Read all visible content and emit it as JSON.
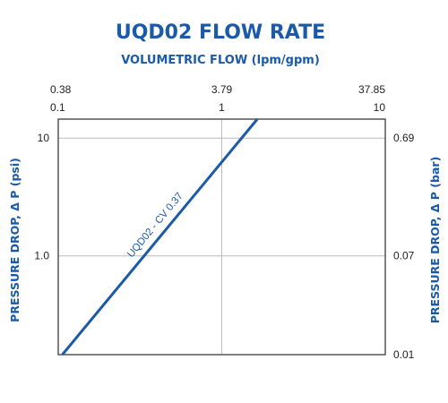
{
  "chart_data": {
    "type": "line",
    "title": "UQD02 FLOW RATE",
    "subtitle": "VOLUMETRIC FLOW (lpm/gpm)",
    "ylabel": "PRESSURE DROP, Δ P (psi)",
    "ylabel_right": "PRESSURE DROP, Δ P (bar)",
    "x_scale": "log",
    "y_scale": "log",
    "xlim": [
      0.1,
      10
    ],
    "ylim": [
      0.145,
      14.5
    ],
    "x_ticks_bottom": [
      {
        "value": 0.1,
        "label": "0.1"
      },
      {
        "value": 1,
        "label": "1"
      },
      {
        "value": 10,
        "label": "10"
      }
    ],
    "x_ticks_top": [
      {
        "value": 0.1,
        "label": "0.38"
      },
      {
        "value": 1,
        "label": "3.79"
      },
      {
        "value": 10,
        "label": "37.85"
      }
    ],
    "y_ticks_left": [
      {
        "value": 10,
        "label": "10"
      },
      {
        "value": 1.0,
        "label": "1.0"
      }
    ],
    "y_ticks_right": [
      {
        "value": 10,
        "label": "0.69"
      },
      {
        "value": 1.0,
        "label": "0.07"
      },
      {
        "value": 0.145,
        "label": "0.01"
      }
    ],
    "grid": true,
    "series": [
      {
        "name": "UQD02 - CV 0.37",
        "color": "#1a5aa8",
        "x": [
          0.106,
          1.65
        ],
        "y": [
          0.145,
          14.5
        ]
      }
    ]
  }
}
